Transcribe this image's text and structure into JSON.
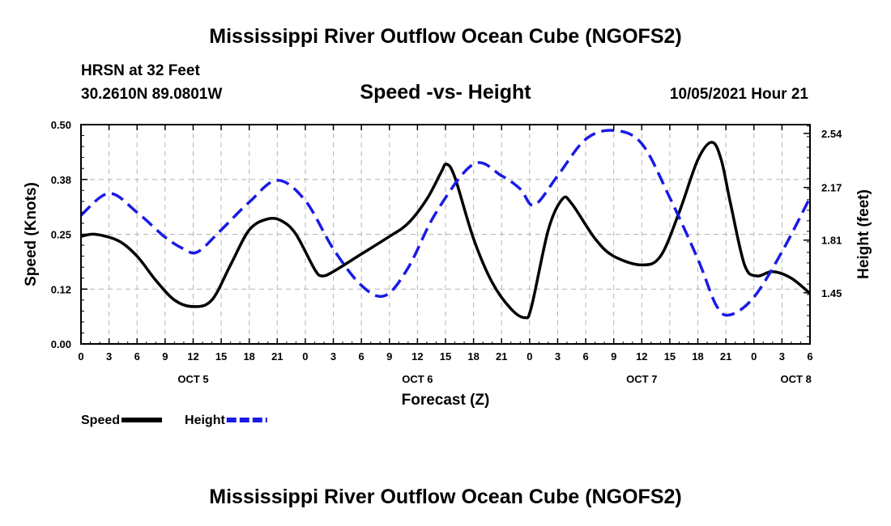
{
  "header": {
    "title": "Mississippi River Outflow Ocean Cube (NGOFS2)",
    "station": "HRSN at 32 Feet",
    "coords": "30.2610N  89.0801W",
    "subtitle": "Speed -vs- Height",
    "datestamp": "10/05/2021 Hour 21"
  },
  "footer": {
    "title": "Mississippi River Outflow Ocean Cube (NGOFS2)"
  },
  "chart_data": {
    "type": "line",
    "title": "Speed -vs- Height",
    "xlabel": "Forecast (Z)",
    "ylabel": "Speed (Knots)",
    "y2label": "Height (feet)",
    "x_unit": "hours since 10/05 00Z",
    "xlim": [
      0,
      78
    ],
    "ylim": [
      0,
      0.5
    ],
    "y2lim": [
      1.1,
      2.6
    ],
    "grid": true,
    "x_ticks": [
      0,
      3,
      6,
      9,
      12,
      15,
      18,
      21,
      24,
      27,
      30,
      33,
      36,
      39,
      42,
      45,
      48,
      51,
      54,
      57,
      60,
      63,
      66,
      69,
      72,
      75,
      78
    ],
    "x_tick_labels": [
      "0",
      "3",
      "6",
      "9",
      "12",
      "15",
      "18",
      "21",
      "0",
      "3",
      "6",
      "9",
      "12",
      "15",
      "18",
      "21",
      "0",
      "3",
      "6",
      "9",
      "12",
      "15",
      "18",
      "21",
      "0",
      "3",
      "6"
    ],
    "y_ticks": [
      0,
      0.125,
      0.25,
      0.375,
      0.5
    ],
    "y_tick_labels": [
      "0.00",
      "0.12",
      "0.25",
      "0.38",
      "0.50"
    ],
    "y2_ticks": [
      1.45,
      1.81,
      2.17,
      2.54
    ],
    "y2_tick_labels": [
      "1.45",
      "1.81",
      "2.17",
      "2.54"
    ],
    "day_labels": [
      {
        "x": 12,
        "label": "OCT 5"
      },
      {
        "x": 36,
        "label": "OCT 6"
      },
      {
        "x": 60,
        "label": "OCT 7"
      },
      {
        "x": 76.5,
        "label": "OCT 8"
      }
    ],
    "series": [
      {
        "name": "Speed",
        "axis": "left",
        "color": "#000000",
        "style": "solid",
        "x": [
          0,
          1.5,
          4,
          6,
          8,
          10,
          12,
          14,
          16,
          18,
          20,
          21.5,
          23,
          25,
          25.8,
          27,
          30,
          33,
          35,
          37,
          38.5,
          39.1,
          40,
          42,
          44,
          46,
          47.5,
          48.2,
          50,
          51.5,
          52.5,
          55,
          57,
          60,
          62,
          64,
          66,
          67.5,
          68.5,
          69.5,
          71,
          72.3,
          74,
          76,
          78
        ],
        "y": [
          0.245,
          0.25,
          0.235,
          0.2,
          0.145,
          0.1,
          0.085,
          0.1,
          0.18,
          0.26,
          0.285,
          0.28,
          0.25,
          0.17,
          0.155,
          0.165,
          0.205,
          0.245,
          0.275,
          0.33,
          0.39,
          0.41,
          0.38,
          0.24,
          0.14,
          0.08,
          0.06,
          0.085,
          0.26,
          0.33,
          0.32,
          0.24,
          0.2,
          0.18,
          0.2,
          0.3,
          0.42,
          0.46,
          0.42,
          0.32,
          0.18,
          0.155,
          0.165,
          0.15,
          0.115
        ]
      },
      {
        "name": "Height",
        "axis": "right",
        "color": "#1a1ae6",
        "style": "dashed",
        "x": [
          0,
          3,
          6,
          9,
          11,
          12.5,
          15,
          18,
          21,
          24,
          27,
          30,
          32.5,
          35,
          38,
          42,
          45,
          47,
          48.5,
          51,
          54,
          57,
          60,
          63,
          66,
          68,
          69.5,
          72,
          75,
          78
        ],
        "y": [
          1.98,
          2.13,
          2.0,
          1.83,
          1.75,
          1.73,
          1.88,
          2.07,
          2.22,
          2.08,
          1.75,
          1.5,
          1.43,
          1.62,
          2.0,
          2.33,
          2.25,
          2.16,
          2.05,
          2.25,
          2.5,
          2.56,
          2.47,
          2.1,
          1.68,
          1.36,
          1.3,
          1.42,
          1.73,
          2.1
        ]
      }
    ],
    "legend": {
      "position": "bottom-left",
      "items": [
        {
          "label": "Speed",
          "color": "#000000",
          "style": "solid"
        },
        {
          "label": "Height",
          "color": "#1a1ae6",
          "style": "dashed"
        }
      ]
    }
  }
}
